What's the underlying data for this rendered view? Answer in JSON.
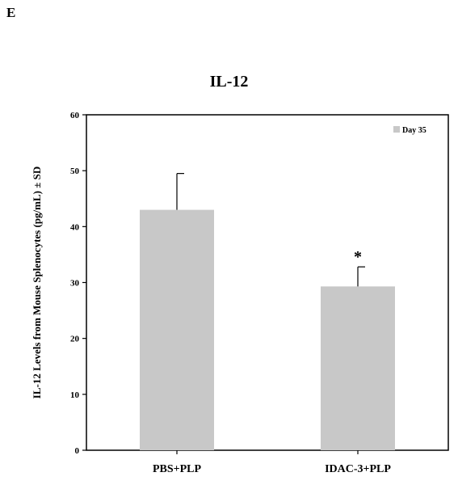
{
  "figure": {
    "panel_label": "E"
  },
  "chart_data": {
    "type": "bar",
    "title": "IL-12",
    "xlabel": "",
    "ylabel": "IL-12 Levels from Mouse Splenocytes (pg/mL) ± SD",
    "categories": [
      "PBS+PLP",
      "IDAC-3+PLP"
    ],
    "series": [
      {
        "name": "Day 35",
        "values": [
          43,
          29.3
        ],
        "errors": [
          6.5,
          3.5
        ],
        "color": "#c8c8c8"
      }
    ],
    "annotations": [
      {
        "category": "IDAC-3+PLP",
        "text": "*"
      }
    ],
    "ylim": [
      0,
      60
    ],
    "yticks": [
      0,
      10,
      20,
      30,
      40,
      50,
      60
    ],
    "grid": false,
    "legend": "top-right"
  }
}
